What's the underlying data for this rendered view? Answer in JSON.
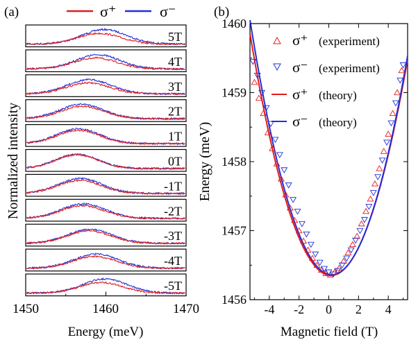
{
  "colors": {
    "sigma_plus": "#e41a1c",
    "sigma_minus": "#1f2fd6",
    "axis": "#000000"
  },
  "chart_data": [
    {
      "type": "line",
      "panel_label": "(a)",
      "xlabel": "Energy (meV)",
      "ylabel": "Normalized intensity",
      "xlim": [
        1450,
        1470
      ],
      "x_ticks": [
        "1450",
        "1460",
        "1470"
      ],
      "legend": {
        "placement": "top",
        "entries": [
          {
            "name": "σ⁺",
            "color": "#e41a1c"
          },
          {
            "name": "σ⁻",
            "color": "#1f2fd6"
          }
        ]
      },
      "field_labels": [
        "5T",
        "4T",
        "3T",
        "2T",
        "1T",
        "0T",
        "-1T",
        "-2T",
        "-3T",
        "-4T",
        "-5T"
      ],
      "peaks": [
        {
          "field": 5,
          "plus": {
            "center": 1459.2,
            "width": 3.8,
            "height": 0.6
          },
          "minus": {
            "center": 1459.8,
            "width": 3.9,
            "height": 0.82
          }
        },
        {
          "field": 4,
          "plus": {
            "center": 1458.7,
            "width": 3.8,
            "height": 0.62
          },
          "minus": {
            "center": 1459.0,
            "width": 3.9,
            "height": 0.8
          }
        },
        {
          "field": 3,
          "plus": {
            "center": 1457.8,
            "width": 3.8,
            "height": 0.62
          },
          "minus": {
            "center": 1457.9,
            "width": 3.9,
            "height": 0.8
          }
        },
        {
          "field": 2,
          "plus": {
            "center": 1457.1,
            "width": 3.8,
            "height": 0.7
          },
          "minus": {
            "center": 1457.0,
            "width": 3.9,
            "height": 0.82
          }
        },
        {
          "field": 1,
          "plus": {
            "center": 1456.6,
            "width": 3.7,
            "height": 0.76
          },
          "minus": {
            "center": 1456.6,
            "width": 3.8,
            "height": 0.84
          }
        },
        {
          "field": 0,
          "plus": {
            "center": 1456.4,
            "width": 3.7,
            "height": 0.78
          },
          "minus": {
            "center": 1456.4,
            "width": 3.8,
            "height": 0.8
          }
        },
        {
          "field": -1,
          "plus": {
            "center": 1456.7,
            "width": 3.8,
            "height": 0.74
          },
          "minus": {
            "center": 1456.8,
            "width": 3.9,
            "height": 0.84
          }
        },
        {
          "field": -2,
          "plus": {
            "center": 1457.1,
            "width": 3.8,
            "height": 0.72
          },
          "minus": {
            "center": 1457.2,
            "width": 3.9,
            "height": 0.82
          }
        },
        {
          "field": -3,
          "plus": {
            "center": 1457.9,
            "width": 3.8,
            "height": 0.7
          },
          "minus": {
            "center": 1458.0,
            "width": 3.9,
            "height": 0.78
          }
        },
        {
          "field": -4,
          "plus": {
            "center": 1458.6,
            "width": 3.8,
            "height": 0.66
          },
          "minus": {
            "center": 1458.8,
            "width": 3.9,
            "height": 0.8
          }
        },
        {
          "field": -5,
          "plus": {
            "center": 1459.4,
            "width": 3.8,
            "height": 0.6
          },
          "minus": {
            "center": 1459.9,
            "width": 3.9,
            "height": 0.8
          }
        }
      ]
    },
    {
      "type": "scatter",
      "panel_label": "(b)",
      "xlabel": "Magnetic field (T)",
      "ylabel": "Energy (meV)",
      "xlim": [
        -5.3,
        5.3
      ],
      "ylim": [
        1456,
        1460
      ],
      "x_ticks": [
        "-4",
        "-2",
        "0",
        "2",
        "4"
      ],
      "x_tick_values": [
        -4,
        -2,
        0,
        2,
        4
      ],
      "y_ticks": [
        "1456",
        "1457",
        "1458",
        "1459",
        "1460"
      ],
      "y_tick_values": [
        1456,
        1457,
        1458,
        1459,
        1460
      ],
      "legend": {
        "placement": "top-right",
        "entries": [
          {
            "name": "σ⁺",
            "suffix": "(experiment)",
            "marker": "triangle-up",
            "color": "#e41a1c"
          },
          {
            "name": "σ⁻",
            "suffix": "(experiment)",
            "marker": "triangle-down",
            "color": "#1f2fd6"
          },
          {
            "name": "σ⁺",
            "suffix": "(theory)",
            "marker": "line",
            "color": "#e41a1c"
          },
          {
            "name": "σ⁻",
            "suffix": "(theory)",
            "marker": "line",
            "color": "#1f2fd6"
          }
        ]
      },
      "series": [
        {
          "kind": "experiment",
          "color": "#e41a1c",
          "marker": "triangle-up",
          "x": [
            -5.0,
            -4.7,
            -4.4,
            -4.1,
            -3.8,
            -3.5,
            -3.2,
            -2.9,
            -2.6,
            -2.3,
            -2.0,
            -1.7,
            -1.4,
            -1.1,
            -0.8,
            -0.5,
            -0.2,
            0.1,
            0.4,
            0.7,
            1.0,
            1.3,
            1.6,
            1.9,
            2.2,
            2.5,
            2.8,
            3.1,
            3.4,
            3.7,
            4.0,
            4.3,
            4.6,
            4.9
          ],
          "y": [
            1459.15,
            1458.92,
            1458.7,
            1458.42,
            1458.19,
            1457.97,
            1457.75,
            1457.52,
            1457.33,
            1457.15,
            1457.0,
            1456.85,
            1456.72,
            1456.6,
            1456.5,
            1456.43,
            1456.38,
            1456.36,
            1456.4,
            1456.46,
            1456.56,
            1456.68,
            1456.8,
            1456.92,
            1457.1,
            1457.28,
            1457.46,
            1457.68,
            1457.9,
            1458.15,
            1458.4,
            1458.7,
            1459.0,
            1459.32
          ]
        },
        {
          "kind": "experiment",
          "color": "#1f2fd6",
          "marker": "triangle-down",
          "x": [
            -5.1,
            -4.8,
            -4.5,
            -4.2,
            -3.9,
            -3.6,
            -3.3,
            -3.0,
            -2.7,
            -2.4,
            -2.1,
            -1.8,
            -1.5,
            -1.2,
            -0.9,
            -0.6,
            -0.3,
            0.0,
            0.3,
            0.6,
            0.9,
            1.2,
            1.5,
            1.8,
            2.1,
            2.4,
            2.7,
            3.0,
            3.3,
            3.6,
            3.9,
            4.2,
            4.5,
            4.8,
            5.0
          ],
          "y": [
            1459.45,
            1459.25,
            1459.0,
            1458.78,
            1458.55,
            1458.32,
            1458.1,
            1457.88,
            1457.66,
            1457.45,
            1457.28,
            1457.1,
            1456.95,
            1456.8,
            1456.66,
            1456.54,
            1456.45,
            1456.4,
            1456.37,
            1456.42,
            1456.5,
            1456.6,
            1456.72,
            1456.86,
            1457.0,
            1457.16,
            1457.35,
            1457.55,
            1457.78,
            1458.02,
            1458.28,
            1458.56,
            1458.85,
            1459.18,
            1459.4
          ]
        },
        {
          "kind": "theory",
          "color": "#e41a1c",
          "x_range": [
            -5.3,
            5.3
          ],
          "vertex_x": 0.15,
          "vertex_y": 1456.35,
          "curvature": 0.118
        },
        {
          "kind": "theory",
          "color": "#1f2fd6",
          "x_range": [
            -5.3,
            5.3
          ],
          "vertex_x": 0.2,
          "vertex_y": 1456.36,
          "curvature": 0.122
        }
      ]
    }
  ]
}
